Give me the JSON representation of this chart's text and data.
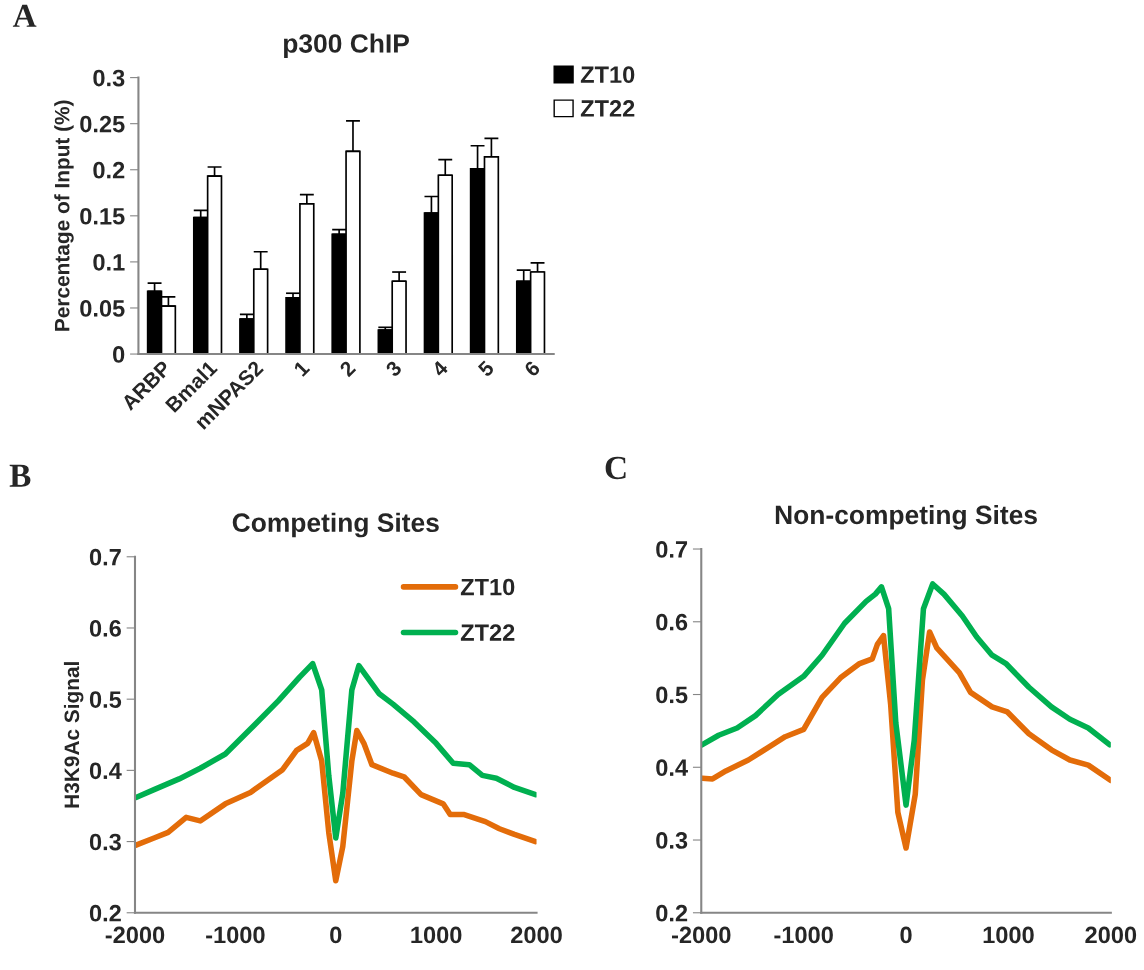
{
  "chart_data": [
    {
      "type": "bar",
      "title": "p300 ChIP",
      "ylabel": "Percentage of Input (%)",
      "annotations": [
        "A"
      ],
      "categories": [
        "ARBP",
        "Bmal1",
        "mNPAS2",
        "1",
        "2",
        "3",
        "4",
        "5",
        "6"
      ],
      "series": [
        {
          "name": "ZT10",
          "color": "#000000",
          "values": [
            0.068,
            0.148,
            0.038,
            0.061,
            0.13,
            0.026,
            0.153,
            0.201,
            0.079
          ],
          "errors": [
            [
              0.068,
              0.077
            ],
            [
              0.148,
              0.156
            ],
            [
              0.038,
              0.043
            ],
            [
              0.061,
              0.066
            ],
            [
              0.13,
              0.135
            ],
            [
              0.026,
              0.029
            ],
            [
              0.153,
              0.171
            ],
            [
              0.201,
              0.226
            ],
            [
              0.079,
              0.091
            ]
          ]
        },
        {
          "name": "ZT22",
          "color": "#ffffff",
          "values": [
            0.052,
            0.193,
            0.092,
            0.163,
            0.22,
            0.079,
            0.194,
            0.214,
            0.089
          ],
          "errors": [
            [
              0.052,
              0.062
            ],
            [
              0.193,
              0.203
            ],
            [
              0.092,
              0.111
            ],
            [
              0.163,
              0.173
            ],
            [
              0.22,
              0.253
            ],
            [
              0.079,
              0.089
            ],
            [
              0.194,
              0.211
            ],
            [
              0.214,
              0.234
            ],
            [
              0.089,
              0.099
            ]
          ]
        }
      ],
      "ylim": [
        0,
        0.3
      ],
      "yticks": [
        0,
        0.05,
        0.1,
        0.15,
        0.2,
        0.25,
        0.3
      ],
      "legend": "top right",
      "grid": false
    },
    {
      "type": "line",
      "title": "Competing Sites",
      "ylabel": "H3K9Ac Signal",
      "annotations": [
        "B"
      ],
      "series": [
        {
          "name": "ZT10",
          "color": "#e36c09",
          "x": [
            -1990,
            -1810,
            -1670,
            -1490,
            -1350,
            -1100,
            -850,
            -530,
            -390,
            -280,
            -220,
            -140,
            -70,
            0,
            70,
            160,
            210,
            280,
            360,
            570,
            680,
            850,
            1070,
            1140,
            1280,
            1490,
            1630,
            1780,
            1990
          ],
          "values": [
            0.295,
            0.305,
            0.313,
            0.334,
            0.329,
            0.353,
            0.369,
            0.401,
            0.428,
            0.438,
            0.453,
            0.413,
            0.313,
            0.245,
            0.293,
            0.413,
            0.456,
            0.438,
            0.408,
            0.396,
            0.391,
            0.366,
            0.353,
            0.338,
            0.338,
            0.328,
            0.318,
            0.31,
            0.3
          ]
        },
        {
          "name": "ZT22",
          "color": "#00b050",
          "x": [
            -1990,
            -1810,
            -1560,
            -1350,
            -1100,
            -850,
            -570,
            -360,
            -230,
            -140,
            -70,
            0,
            70,
            160,
            230,
            430,
            570,
            780,
            1000,
            1170,
            1330,
            1460,
            1600,
            1780,
            1990
          ],
          "values": [
            0.362,
            0.373,
            0.388,
            0.403,
            0.423,
            0.458,
            0.498,
            0.531,
            0.55,
            0.513,
            0.393,
            0.305,
            0.368,
            0.513,
            0.547,
            0.508,
            0.493,
            0.468,
            0.438,
            0.41,
            0.408,
            0.393,
            0.389,
            0.376,
            0.366
          ]
        }
      ],
      "xlim": [
        -2000,
        2000
      ],
      "xticks": [
        -2000,
        -1000,
        0,
        1000,
        2000
      ],
      "ylim": [
        0.2,
        0.7
      ],
      "yticks": [
        0.2,
        0.3,
        0.4,
        0.5,
        0.6,
        0.7
      ],
      "legend": "top right",
      "grid": false,
      "marker": "none",
      "line_style": "solid"
    },
    {
      "type": "line",
      "title": "Non-competing Sites",
      "annotations": [
        "C"
      ],
      "series": [
        {
          "color": "#e36c09",
          "x": [
            -1990,
            -1890,
            -1760,
            -1540,
            -1360,
            -1180,
            -1000,
            -820,
            -640,
            -460,
            -330,
            -280,
            -220,
            -150,
            -80,
            0,
            90,
            160,
            230,
            300,
            520,
            630,
            840,
            990,
            1200,
            1420,
            1600,
            1780,
            2000
          ],
          "values": [
            0.385,
            0.384,
            0.395,
            0.41,
            0.426,
            0.442,
            0.452,
            0.496,
            0.523,
            0.542,
            0.549,
            0.569,
            0.581,
            0.486,
            0.338,
            0.289,
            0.363,
            0.52,
            0.586,
            0.564,
            0.53,
            0.503,
            0.483,
            0.476,
            0.446,
            0.424,
            0.41,
            0.403,
            0.382
          ]
        },
        {
          "color": "#00b050",
          "x": [
            -1990,
            -1830,
            -1650,
            -1470,
            -1250,
            -1000,
            -820,
            -600,
            -390,
            -300,
            -240,
            -170,
            -100,
            0,
            80,
            170,
            260,
            370,
            550,
            690,
            840,
            980,
            1200,
            1420,
            1600,
            1780,
            1990
          ],
          "values": [
            0.431,
            0.444,
            0.454,
            0.471,
            0.5,
            0.525,
            0.554,
            0.598,
            0.628,
            0.638,
            0.648,
            0.618,
            0.461,
            0.348,
            0.437,
            0.618,
            0.652,
            0.638,
            0.608,
            0.579,
            0.554,
            0.542,
            0.51,
            0.483,
            0.466,
            0.454,
            0.431
          ]
        }
      ],
      "xlim": [
        -2000,
        2000
      ],
      "xticks": [
        -2000,
        -1000,
        0,
        1000,
        2000
      ],
      "ylim": [
        0.2,
        0.7
      ],
      "yticks": [
        0.2,
        0.3,
        0.4,
        0.5,
        0.6,
        0.7
      ],
      "grid": false,
      "marker": "none",
      "line_style": "solid"
    }
  ]
}
